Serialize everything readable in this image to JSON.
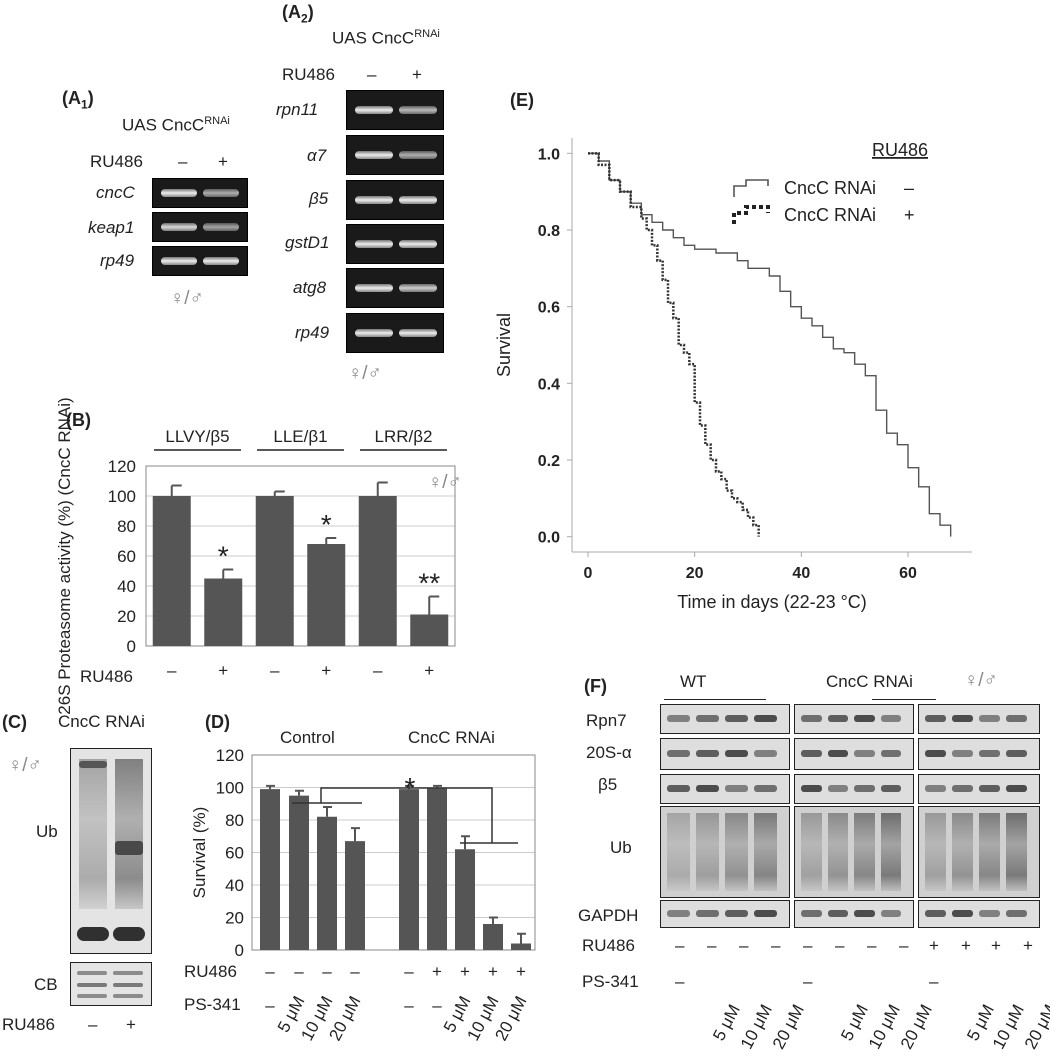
{
  "panelA1": {
    "label": "(A",
    "label_sub": "1",
    "label_close": ")",
    "title": "UAS CncC",
    "title_sup": "RNAi",
    "ru486_label": "RU486",
    "cond_minus": "–",
    "cond_plus": "+",
    "genes": [
      "cncC",
      "keap1",
      "rp49"
    ],
    "sex": "♀/♂"
  },
  "panelA2": {
    "label": "(A",
    "label_sub": "2",
    "label_close": ")",
    "title": "UAS CncC",
    "title_sup": "RNAi",
    "ru486_label": "RU486",
    "cond_minus": "–",
    "cond_plus": "+",
    "genes": [
      "rpn11",
      "α7",
      "β5",
      "gstD1",
      "atg8",
      "rp49"
    ],
    "sex": "♀/♂"
  },
  "panelB": {
    "label": "(B)",
    "sex": "♀/♂",
    "ru486_label": "RU486",
    "chart_data": {
      "type": "bar",
      "ylabel": "26S Proteasome activity (%) (CncC RNAi)",
      "ylim": [
        0,
        120
      ],
      "yticks": [
        0,
        20,
        40,
        60,
        80,
        100,
        120
      ],
      "groups": [
        "LLVY/β5",
        "LLE/β1",
        "LRR/β2"
      ],
      "ru486": [
        "–",
        "+",
        "–",
        "+",
        "–",
        "+"
      ],
      "values": [
        100,
        45,
        100,
        68,
        100,
        21
      ],
      "errors": [
        7,
        6,
        3,
        4,
        9,
        12
      ],
      "significance": [
        "",
        "*",
        "",
        "*",
        "",
        "**"
      ]
    }
  },
  "panelC": {
    "label": "(C)",
    "title": "CncC RNAi",
    "sex": "♀/♂",
    "ub_label": "Ub",
    "cb_label": "CB",
    "ru486_label": "RU486",
    "cond_minus": "–",
    "cond_plus": "+"
  },
  "panelD": {
    "label": "(D)",
    "group1": "Control",
    "group2": "CncC RNAi",
    "ru486_label": "RU486",
    "ps_label": "PS-341",
    "chart_data": {
      "type": "bar",
      "ylabel": "Survival (%)",
      "ylim": [
        0,
        120
      ],
      "yticks": [
        0,
        20,
        40,
        60,
        80,
        100,
        120
      ],
      "ru486": [
        "–",
        "–",
        "–",
        "–",
        "–",
        "+",
        "+",
        "+",
        "+"
      ],
      "ps341": [
        "–",
        "5 μM",
        "10 μM",
        "20 μM",
        "–",
        "–",
        "5 μM",
        "10 μM",
        "20 μM"
      ],
      "values": [
        99,
        95,
        82,
        67,
        99,
        100,
        62,
        16,
        4
      ],
      "errors": [
        2,
        3,
        6,
        8,
        2,
        1,
        8,
        4,
        6
      ],
      "significance": "*"
    }
  },
  "panelE": {
    "label": "(E)",
    "chart_data": {
      "type": "line",
      "xlabel": "Time in days (22-23 °C)",
      "ylabel": "Survival",
      "xlim": [
        -3,
        72
      ],
      "ylim": [
        -0.04,
        1.04
      ],
      "xticks": [
        0,
        20,
        40,
        60
      ],
      "yticks": [
        0.0,
        0.2,
        0.4,
        0.6,
        0.8,
        1.0
      ],
      "legend_title": "RU486",
      "series": [
        {
          "name": "CncC RNAi",
          "cond": "–",
          "style": "solid",
          "x": [
            0,
            2,
            4,
            6,
            8,
            10,
            12,
            14,
            16,
            18,
            20,
            22,
            24,
            26,
            28,
            30,
            32,
            34,
            36,
            38,
            40,
            42,
            44,
            46,
            48,
            50,
            52,
            54,
            56,
            58,
            60,
            62,
            64,
            66,
            68
          ],
          "y": [
            1.0,
            0.98,
            0.93,
            0.9,
            0.87,
            0.84,
            0.82,
            0.8,
            0.78,
            0.76,
            0.75,
            0.75,
            0.74,
            0.74,
            0.72,
            0.7,
            0.7,
            0.68,
            0.64,
            0.6,
            0.57,
            0.55,
            0.52,
            0.49,
            0.48,
            0.45,
            0.42,
            0.33,
            0.27,
            0.24,
            0.18,
            0.13,
            0.06,
            0.03,
            0.0
          ]
        },
        {
          "name": "CncC RNAi",
          "cond": "+",
          "style": "dashed",
          "x": [
            0,
            2,
            4,
            6,
            8,
            10,
            11,
            12,
            13,
            14,
            15,
            16,
            17,
            18,
            19,
            20,
            21,
            22,
            23,
            24,
            25,
            26,
            27,
            28,
            29,
            30,
            31,
            32
          ],
          "y": [
            1.0,
            0.97,
            0.93,
            0.9,
            0.86,
            0.83,
            0.8,
            0.76,
            0.72,
            0.67,
            0.61,
            0.57,
            0.5,
            0.48,
            0.45,
            0.35,
            0.29,
            0.24,
            0.2,
            0.17,
            0.15,
            0.12,
            0.1,
            0.09,
            0.07,
            0.05,
            0.03,
            0.0
          ]
        }
      ]
    }
  },
  "panelF": {
    "label": "(F)",
    "wt_label": "WT",
    "rnai_label": "CncC RNAi",
    "sex": "♀/♂",
    "rows": [
      "Rpn7",
      "20S-α",
      "β5",
      "Ub",
      "GAPDH"
    ],
    "ru486_label": "RU486",
    "ps_label": "PS-341",
    "ru486": [
      "–",
      "–",
      "–",
      "–",
      "–",
      "–",
      "–",
      "–",
      "+",
      "+",
      "+",
      "+"
    ],
    "ps341": [
      "–",
      "5 μM",
      "10 μM",
      "20 μM",
      "–",
      "5 μM",
      "10 μM",
      "20 μM",
      "–",
      "5 μM",
      "10 μM",
      "20 μM"
    ]
  }
}
